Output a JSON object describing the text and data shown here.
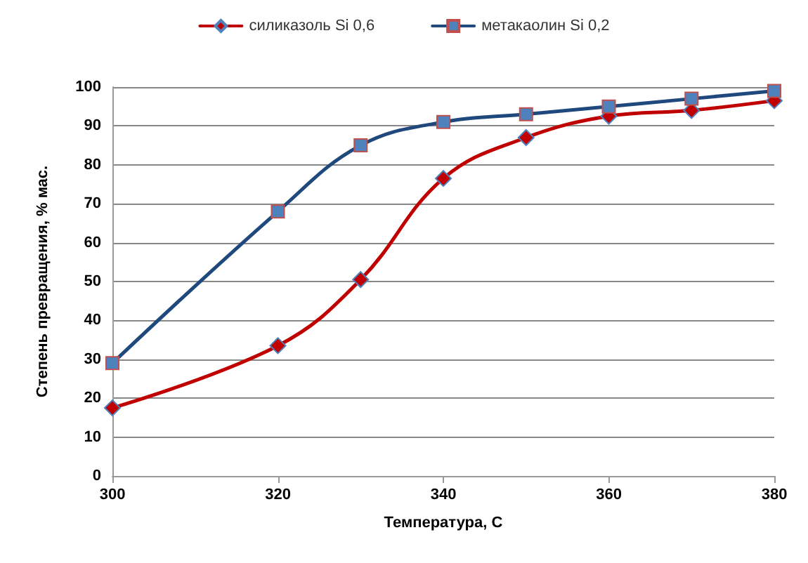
{
  "chart_data": {
    "type": "line",
    "xlabel": "Температура, С",
    "ylabel": "Степень превращения, % мас.",
    "x": [
      300,
      320,
      330,
      340,
      350,
      360,
      370,
      380
    ],
    "series": [
      {
        "name": "силиказоль Si 0,6",
        "color": "#c00000",
        "marker": "diamond",
        "values": [
          17.5,
          33.5,
          50.5,
          76.5,
          87,
          92.5,
          94,
          96.5
        ]
      },
      {
        "name": "метакаолин Si 0,2",
        "color": "#1f497d",
        "marker": "square",
        "values": [
          29,
          68,
          85,
          91,
          93,
          95,
          97,
          99
        ]
      }
    ],
    "xlim": [
      300,
      380
    ],
    "xticks": [
      300,
      320,
      340,
      360,
      380
    ],
    "ylim": [
      0,
      100
    ],
    "yticks": [
      0,
      10,
      20,
      30,
      40,
      50,
      60,
      70,
      80,
      90,
      100
    ],
    "grid": "y",
    "legend": "top",
    "line_style": "solid"
  }
}
